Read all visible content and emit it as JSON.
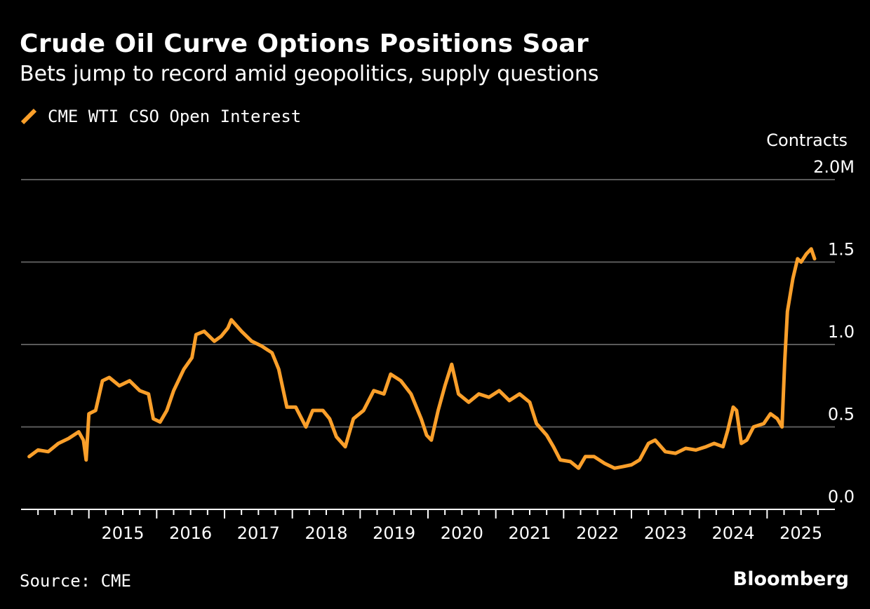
{
  "chart_data": {
    "type": "line",
    "title": "Crude Oil Curve Options Positions Soar",
    "subtitle": "Bets jump to record amid geopolitics, supply questions",
    "ylabel": "Contracts",
    "ylim": [
      0,
      2.0
    ],
    "ytick_labels": [
      {
        "value": 2.0,
        "label": "2.0M"
      },
      {
        "value": 1.5,
        "label": "1.5"
      },
      {
        "value": 1.0,
        "label": "1.0"
      },
      {
        "value": 0.5,
        "label": "0.5"
      },
      {
        "value": 0.0,
        "label": "0.0"
      }
    ],
    "xlim": [
      2014.0,
      2026.0
    ],
    "xtick_labels": [
      "2015",
      "2016",
      "2017",
      "2018",
      "2019",
      "2020",
      "2021",
      "2022",
      "2023",
      "2024",
      "2025"
    ],
    "grid": true,
    "legend_position": "top-left",
    "series": [
      {
        "name": "CME WTI CSO Open Interest",
        "color": "#fa9f2a",
        "x": [
          2014.12,
          2014.25,
          2014.4,
          2014.55,
          2014.7,
          2014.85,
          2014.92,
          2014.96,
          2015.0,
          2015.1,
          2015.2,
          2015.3,
          2015.45,
          2015.6,
          2015.75,
          2015.88,
          2015.95,
          2016.05,
          2016.15,
          2016.25,
          2016.4,
          2016.52,
          2016.58,
          2016.7,
          2016.85,
          2016.95,
          2017.05,
          2017.1,
          2017.25,
          2017.4,
          2017.55,
          2017.7,
          2017.8,
          2017.92,
          2018.05,
          2018.2,
          2018.3,
          2018.45,
          2018.55,
          2018.65,
          2018.78,
          2018.9,
          2019.05,
          2019.2,
          2019.35,
          2019.45,
          2019.6,
          2019.75,
          2019.9,
          2019.98,
          2020.05,
          2020.15,
          2020.25,
          2020.35,
          2020.45,
          2020.6,
          2020.75,
          2020.9,
          2021.05,
          2021.2,
          2021.35,
          2021.5,
          2021.6,
          2021.75,
          2021.85,
          2021.95,
          2022.1,
          2022.22,
          2022.32,
          2022.45,
          2022.6,
          2022.75,
          2022.88,
          2023.0,
          2023.12,
          2023.25,
          2023.35,
          2023.5,
          2023.65,
          2023.8,
          2023.95,
          2024.1,
          2024.22,
          2024.35,
          2024.42,
          2024.5,
          2024.55,
          2024.62,
          2024.7,
          2024.8,
          2024.95,
          2025.05,
          2025.15,
          2025.22,
          2025.26,
          2025.3,
          2025.38,
          2025.45,
          2025.5,
          2025.58,
          2025.65,
          2025.7
        ],
        "values": [
          0.32,
          0.36,
          0.35,
          0.4,
          0.43,
          0.47,
          0.42,
          0.3,
          0.58,
          0.6,
          0.78,
          0.8,
          0.75,
          0.78,
          0.72,
          0.7,
          0.55,
          0.53,
          0.6,
          0.72,
          0.85,
          0.92,
          1.06,
          1.08,
          1.02,
          1.05,
          1.1,
          1.15,
          1.08,
          1.02,
          0.99,
          0.95,
          0.85,
          0.62,
          0.62,
          0.5,
          0.6,
          0.6,
          0.55,
          0.44,
          0.38,
          0.55,
          0.6,
          0.72,
          0.7,
          0.82,
          0.78,
          0.7,
          0.55,
          0.45,
          0.42,
          0.6,
          0.75,
          0.88,
          0.7,
          0.65,
          0.7,
          0.68,
          0.72,
          0.66,
          0.7,
          0.65,
          0.52,
          0.45,
          0.38,
          0.3,
          0.29,
          0.25,
          0.32,
          0.32,
          0.28,
          0.25,
          0.26,
          0.27,
          0.3,
          0.4,
          0.42,
          0.35,
          0.34,
          0.37,
          0.36,
          0.38,
          0.4,
          0.38,
          0.48,
          0.62,
          0.6,
          0.4,
          0.42,
          0.5,
          0.52,
          0.58,
          0.55,
          0.5,
          0.9,
          1.2,
          1.4,
          1.52,
          1.5,
          1.55,
          1.58,
          1.52
        ]
      }
    ],
    "source": "Source: CME",
    "brand": "Bloomberg"
  }
}
